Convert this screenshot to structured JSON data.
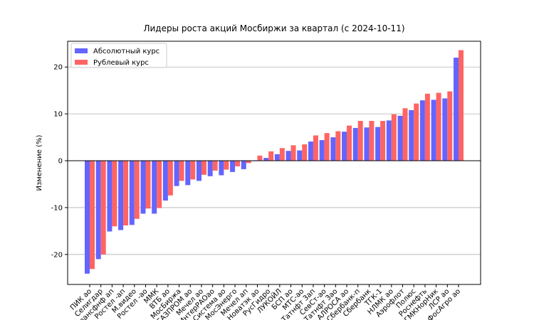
{
  "chart_data": {
    "type": "bar",
    "title": "Лидеры роста акций Мосбиржи за квартал (с 2024-10-11)",
    "y_label": "Изменение (%)",
    "categories": [
      "ПИК ао",
      "Селигдар",
      "Трансфнф ап",
      "Ростел -ап",
      "М.видео",
      "Ростел -ао",
      "ММК",
      "ВТБ ао",
      "МосБиржа",
      "ГАЗПРОМ ао",
      "Мечел ао",
      "ИнтерРАОао",
      "Система ао",
      "МосЭнерго",
      "Мечел ап",
      "Новатэк ао",
      "РусГидро",
      "ЛУКОЙЛ",
      "БСП ао",
      "МТС-ао",
      "Татнфт 3ап",
      "СевСт-ао",
      "Татнфт 3ао",
      "АЛРОСА ао",
      "Сбербанк-п",
      "Сбербанк",
      "ТГК-1",
      "НЛМК ао",
      "Аэрофлот",
      "Полюс",
      "Роснефть",
      "ГМКНорНик",
      "ЛСР ао",
      "ФосАгро ао"
    ],
    "series": [
      {
        "name": "Абсолютный курс",
        "color": "#6464ff",
        "values": [
          -24.1,
          -21.0,
          -15.1,
          -14.8,
          -13.7,
          -11.3,
          -11.3,
          -8.5,
          -5.4,
          -5.2,
          -4.3,
          -3.3,
          -3.1,
          -2.4,
          -1.8,
          -0.1,
          0.6,
          1.4,
          2.1,
          2.2,
          4.1,
          4.4,
          5.0,
          6.2,
          7.0,
          7.1,
          7.2,
          8.6,
          9.6,
          10.8,
          12.9,
          13.0,
          13.3,
          22.0
        ]
      },
      {
        "name": "Рублевый курс",
        "color": "#ff6464",
        "values": [
          -23.1,
          -20.0,
          -14.0,
          -13.8,
          -12.4,
          -10.2,
          -10.1,
          -7.4,
          -4.3,
          -4.0,
          -3.0,
          -2.1,
          -1.9,
          -1.2,
          -0.5,
          1.1,
          2.0,
          2.7,
          3.3,
          3.5,
          5.4,
          5.9,
          6.3,
          7.5,
          8.5,
          8.5,
          8.5,
          9.9,
          11.2,
          12.2,
          14.3,
          14.5,
          14.8,
          23.6
        ]
      }
    ],
    "ylim": [
      -26.4,
      25.5
    ],
    "yticks": [
      -20,
      -10,
      0,
      10,
      20
    ],
    "grid": true,
    "legend": "upper left"
  }
}
